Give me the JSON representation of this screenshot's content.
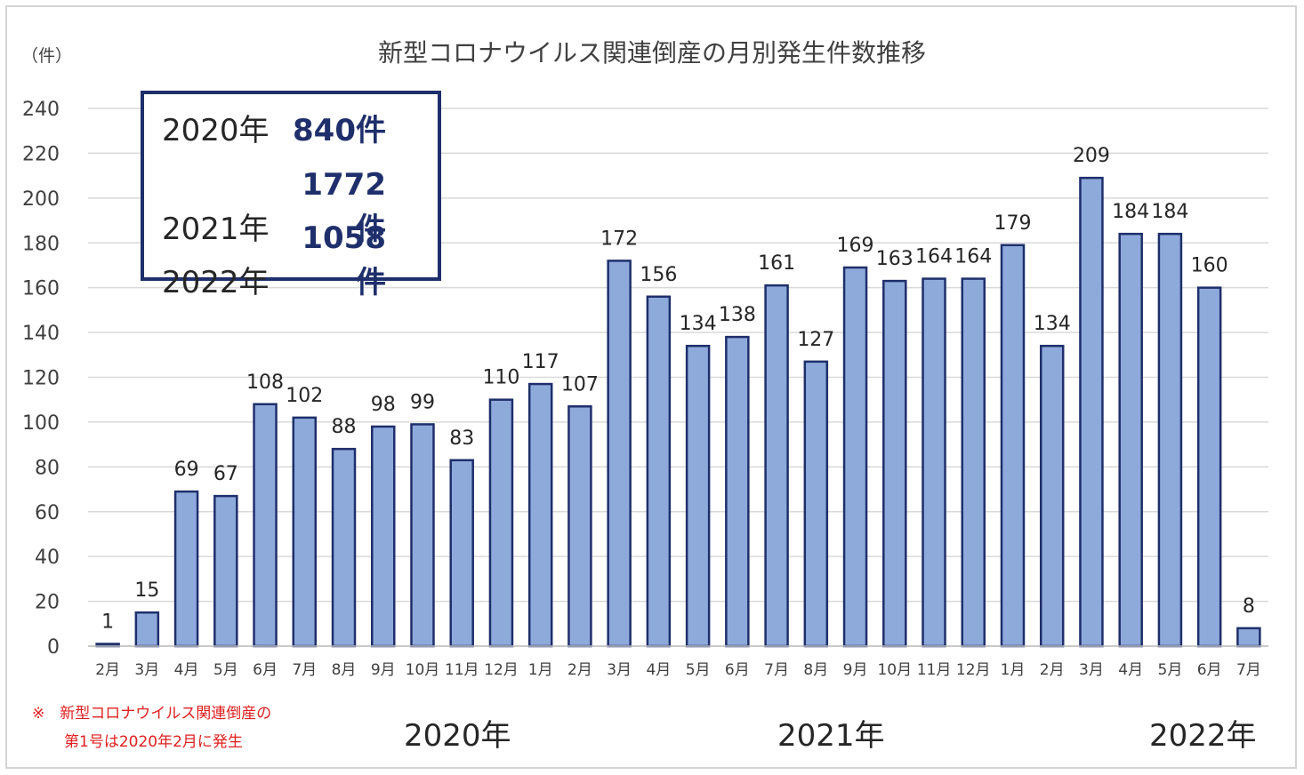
{
  "chart_data": {
    "type": "bar",
    "title": "新型コロナウイルス関連倒産の月別発生件数推移",
    "ylabel": "（件）",
    "ylim": [
      0,
      240
    ],
    "yticks": [
      0,
      20,
      40,
      60,
      80,
      100,
      120,
      140,
      160,
      180,
      200,
      220,
      240
    ],
    "categories": [
      "2月",
      "3月",
      "4月",
      "5月",
      "6月",
      "7月",
      "8月",
      "9月",
      "10月",
      "11月",
      "12月",
      "1月",
      "2月",
      "3月",
      "4月",
      "5月",
      "6月",
      "7月",
      "8月",
      "9月",
      "10月",
      "11月",
      "12月",
      "1月",
      "2月",
      "3月",
      "4月",
      "5月",
      "6月",
      "7月"
    ],
    "values": [
      1,
      15,
      69,
      67,
      108,
      102,
      88,
      98,
      99,
      83,
      110,
      117,
      107,
      172,
      156,
      134,
      138,
      161,
      127,
      169,
      163,
      164,
      164,
      179,
      134,
      209,
      184,
      184,
      160,
      8
    ],
    "year_groups": [
      "2020年",
      "2021年",
      "2022年"
    ],
    "bar_color": "#8eaadb",
    "bar_edge_color": "#1f2f6b"
  },
  "summary": {
    "rows": [
      {
        "year": "2020年",
        "count": "840件"
      },
      {
        "year": "2021年",
        "count": "1772件"
      },
      {
        "year": "2022年",
        "count": "1058件"
      }
    ]
  },
  "note": {
    "line1": "※　新型コロナウイルス関連倒産の",
    "line2": "第1号は2020年2月に発生"
  }
}
